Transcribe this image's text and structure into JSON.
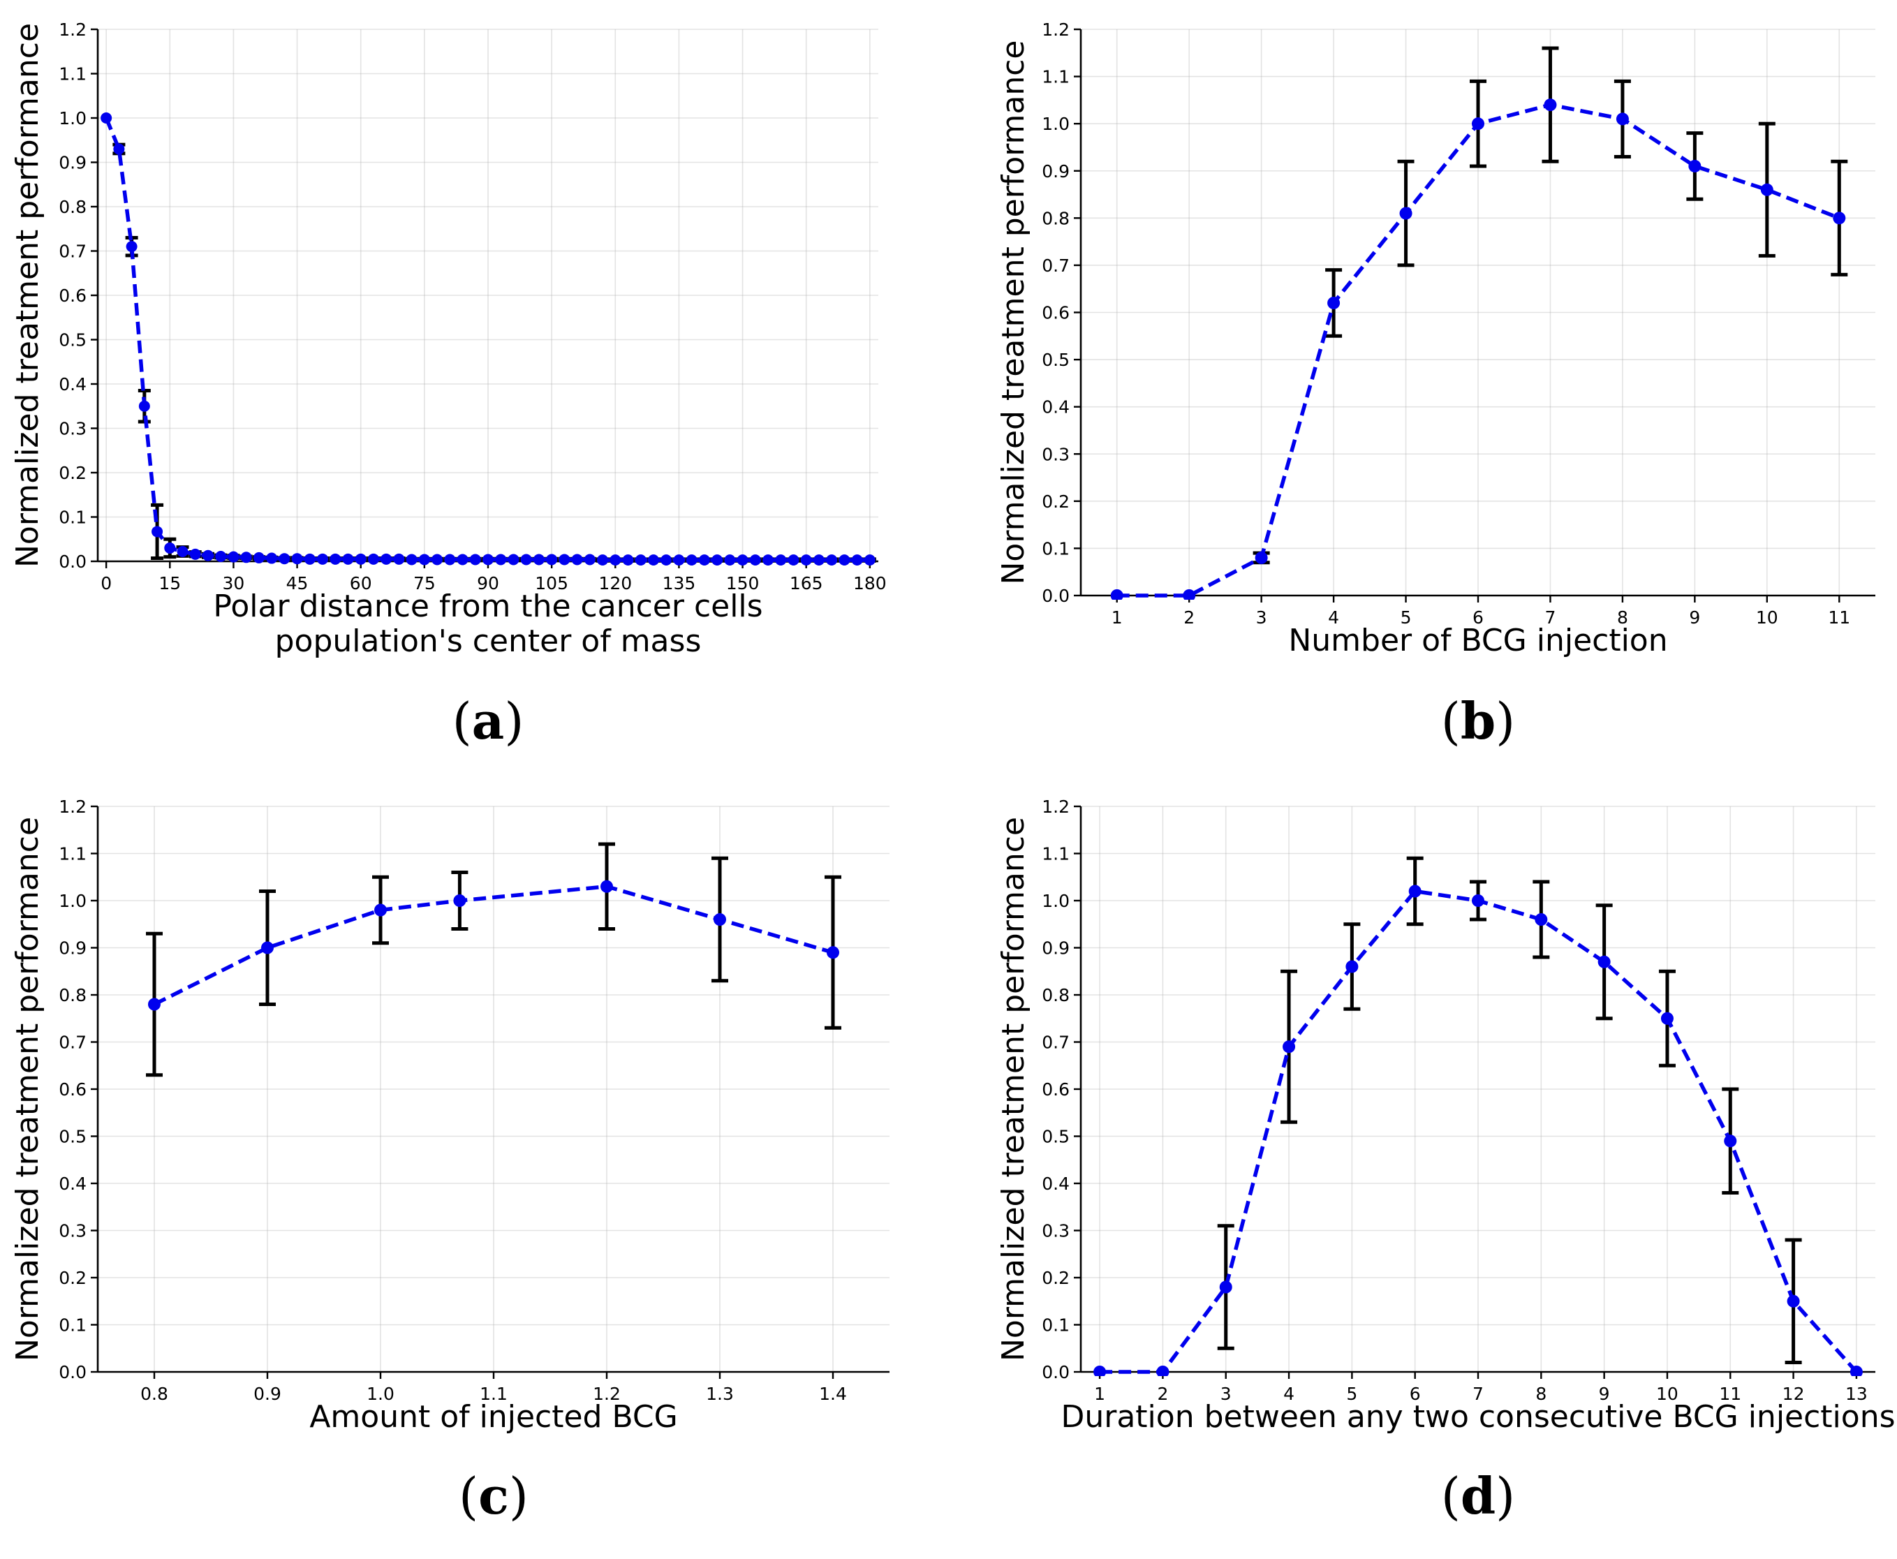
{
  "colors": {
    "series": "#0000ee",
    "errorbar": "#000000",
    "grid": "#b0b0b0"
  },
  "chart_data": [
    {
      "id": "a",
      "type": "line",
      "panel_label": "a",
      "title": "",
      "xlabel_lines": [
        "Polar distance from the cancer cells",
        "population's center of mass"
      ],
      "ylabel": "Normalized treatment performance",
      "xlim": [
        -2,
        182
      ],
      "ylim": [
        0,
        1.2
      ],
      "xticks": [
        0,
        15,
        30,
        45,
        60,
        75,
        90,
        105,
        120,
        135,
        150,
        165,
        180
      ],
      "xtick_labels": [
        "0",
        "15",
        "30",
        "45",
        "60",
        "75",
        "90",
        "105",
        "120",
        "135",
        "150",
        "165",
        "180"
      ],
      "yticks": [
        0,
        0.1,
        0.2,
        0.3,
        0.4,
        0.5,
        0.6,
        0.7,
        0.8,
        0.9,
        1.0,
        1.1,
        1.2
      ],
      "ytick_labels": [
        "0.0",
        "0.1",
        "0.2",
        "0.3",
        "0.4",
        "0.5",
        "0.6",
        "0.7",
        "0.8",
        "0.9",
        "1.0",
        "1.1",
        "1.2"
      ],
      "grid": true,
      "x": [
        0,
        3,
        6,
        9,
        12,
        15,
        18,
        21,
        24,
        27,
        30,
        33,
        36,
        39,
        42,
        45,
        48,
        51,
        54,
        57,
        60,
        63,
        66,
        69,
        72,
        75,
        78,
        81,
        84,
        87,
        90,
        93,
        96,
        99,
        102,
        105,
        108,
        111,
        114,
        117,
        120,
        123,
        126,
        129,
        132,
        135,
        138,
        141,
        144,
        147,
        150,
        153,
        156,
        159,
        162,
        165,
        168,
        171,
        174,
        177,
        180
      ],
      "y": [
        1.0,
        0.93,
        0.71,
        0.35,
        0.067,
        0.03,
        0.022,
        0.016,
        0.013,
        0.011,
        0.01,
        0.009,
        0.008,
        0.007,
        0.006,
        0.006,
        0.005,
        0.005,
        0.005,
        0.005,
        0.005,
        0.005,
        0.005,
        0.005,
        0.004,
        0.004,
        0.004,
        0.004,
        0.004,
        0.004,
        0.004,
        0.004,
        0.004,
        0.004,
        0.004,
        0.004,
        0.004,
        0.004,
        0.004,
        0.003,
        0.003,
        0.003,
        0.003,
        0.003,
        0.003,
        0.003,
        0.003,
        0.003,
        0.003,
        0.003,
        0.003,
        0.003,
        0.003,
        0.003,
        0.003,
        0.003,
        0.003,
        0.003,
        0.003,
        0.003,
        0.003
      ],
      "yerr": [
        0,
        0.01,
        0.02,
        0.035,
        0.06,
        0.02,
        0.01,
        0.005,
        0.004,
        0.003,
        0.003,
        0.002,
        0.002,
        0.002,
        0.002,
        0.002,
        0.002,
        0.002,
        0.002,
        0.002,
        0.002,
        0.002,
        0.002,
        0.002,
        0.002,
        0.002,
        0.002,
        0.002,
        0.002,
        0.002,
        0.002,
        0.002,
        0.002,
        0.002,
        0.002,
        0.002,
        0.002,
        0.002,
        0.002,
        0.002,
        0.002,
        0.002,
        0.002,
        0.002,
        0.002,
        0.002,
        0.002,
        0.002,
        0.002,
        0.002,
        0.002,
        0.002,
        0.002,
        0.002,
        0.002,
        0.002,
        0.002,
        0.002,
        0.002,
        0.002,
        0.002
      ]
    },
    {
      "id": "b",
      "type": "line",
      "panel_label": "b",
      "title": "",
      "xlabel_lines": [
        "Number of BCG injection"
      ],
      "ylabel": "Normalized treatment performance",
      "xlim": [
        0.5,
        11.5
      ],
      "ylim": [
        0,
        1.2
      ],
      "xticks": [
        1,
        2,
        3,
        4,
        5,
        6,
        7,
        8,
        9,
        10,
        11
      ],
      "xtick_labels": [
        "1",
        "2",
        "3",
        "4",
        "5",
        "6",
        "7",
        "8",
        "9",
        "10",
        "11"
      ],
      "yticks": [
        0,
        0.1,
        0.2,
        0.3,
        0.4,
        0.5,
        0.6,
        0.7,
        0.8,
        0.9,
        1.0,
        1.1,
        1.2
      ],
      "ytick_labels": [
        "0.0",
        "0.1",
        "0.2",
        "0.3",
        "0.4",
        "0.5",
        "0.6",
        "0.7",
        "0.8",
        "0.9",
        "1.0",
        "1.1",
        "1.2"
      ],
      "grid": true,
      "x": [
        1,
        2,
        3,
        4,
        5,
        6,
        7,
        8,
        9,
        10,
        11
      ],
      "y": [
        0.0,
        0.0,
        0.08,
        0.62,
        0.81,
        1.0,
        1.04,
        1.01,
        0.91,
        0.86,
        0.8
      ],
      "yerr": [
        0,
        0,
        0.01,
        0.07,
        0.11,
        0.09,
        0.12,
        0.08,
        0.07,
        0.14,
        0.12
      ]
    },
    {
      "id": "c",
      "type": "line",
      "panel_label": "c",
      "title": "",
      "xlabel_lines": [
        "Amount of injected BCG"
      ],
      "ylabel": "Normalized treatment performance",
      "xlim": [
        0.75,
        1.45
      ],
      "ylim": [
        0,
        1.2
      ],
      "xticks": [
        0.8,
        0.9,
        1.0,
        1.1,
        1.2,
        1.3,
        1.4
      ],
      "xtick_labels": [
        "0.8",
        "0.9",
        "1.0",
        "1.1",
        "1.2",
        "1.3",
        "1.4"
      ],
      "yticks": [
        0,
        0.1,
        0.2,
        0.3,
        0.4,
        0.5,
        0.6,
        0.7,
        0.8,
        0.9,
        1.0,
        1.1,
        1.2
      ],
      "ytick_labels": [
        "0.0",
        "0.1",
        "0.2",
        "0.3",
        "0.4",
        "0.5",
        "0.6",
        "0.7",
        "0.8",
        "0.9",
        "1.0",
        "1.1",
        "1.2"
      ],
      "grid": true,
      "x": [
        0.8,
        0.9,
        1.0,
        1.07,
        1.2,
        1.3,
        1.4
      ],
      "y": [
        0.78,
        0.9,
        0.98,
        1.0,
        1.03,
        0.96,
        0.89
      ],
      "yerr": [
        0.15,
        0.12,
        0.07,
        0.06,
        0.09,
        0.13,
        0.16
      ]
    },
    {
      "id": "d",
      "type": "line",
      "panel_label": "d",
      "title": "",
      "xlabel_lines": [
        "Duration between any two consecutive BCG injections"
      ],
      "ylabel": "Normalized treatment performance",
      "xlim": [
        0.7,
        13.3
      ],
      "ylim": [
        0,
        1.2
      ],
      "xticks": [
        1,
        2,
        3,
        4,
        5,
        6,
        7,
        8,
        9,
        10,
        11,
        12,
        13
      ],
      "xtick_labels": [
        "1",
        "2",
        "3",
        "4",
        "5",
        "6",
        "7",
        "8",
        "9",
        "10",
        "11",
        "12",
        "13"
      ],
      "yticks": [
        0,
        0.1,
        0.2,
        0.3,
        0.4,
        0.5,
        0.6,
        0.7,
        0.8,
        0.9,
        1.0,
        1.1,
        1.2
      ],
      "ytick_labels": [
        "0.0",
        "0.1",
        "0.2",
        "0.3",
        "0.4",
        "0.5",
        "0.6",
        "0.7",
        "0.8",
        "0.9",
        "1.0",
        "1.1",
        "1.2"
      ],
      "grid": true,
      "x": [
        1,
        2,
        3,
        4,
        5,
        6,
        7,
        8,
        9,
        10,
        11,
        12,
        13
      ],
      "y": [
        0.0,
        0.0,
        0.18,
        0.69,
        0.86,
        1.02,
        1.0,
        0.96,
        0.87,
        0.75,
        0.49,
        0.15,
        0.0
      ],
      "yerr": [
        0,
        0,
        0.13,
        0.16,
        0.09,
        0.07,
        0.04,
        0.08,
        0.12,
        0.1,
        0.11,
        0.13,
        0
      ]
    }
  ]
}
